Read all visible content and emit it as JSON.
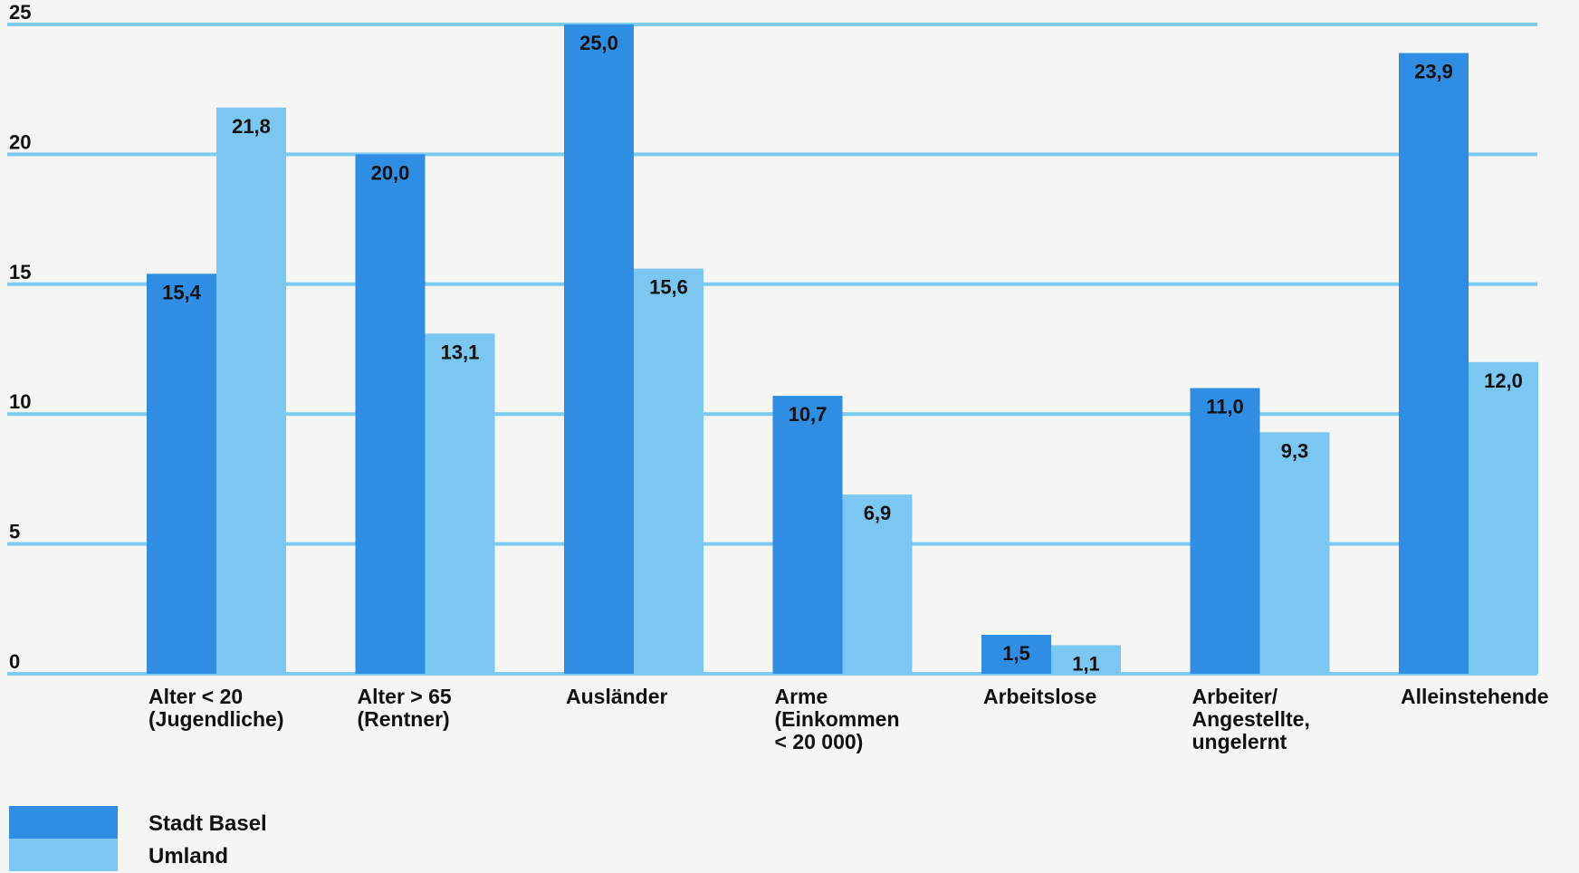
{
  "chart_data": {
    "type": "bar",
    "categories": [
      [
        "Alter < 20",
        "(Jugendliche)"
      ],
      [
        "Alter > 65",
        "(Rentner)"
      ],
      [
        "Ausländer"
      ],
      [
        "Arme",
        "(Einkommen",
        "< 20 000)"
      ],
      [
        "Arbeitslose"
      ],
      [
        "Arbeiter/",
        "Angestellte,",
        "ungelernt"
      ],
      [
        "Alleinstehende"
      ]
    ],
    "series": [
      {
        "name": "Stadt Basel",
        "color": "#2f8ee3",
        "values": [
          15.4,
          20.0,
          25.0,
          10.7,
          1.5,
          11.0,
          23.9
        ],
        "labels": [
          "15,4",
          "20,0",
          "25,0",
          "10,7",
          "1,5",
          "11,0",
          "23,9"
        ]
      },
      {
        "name": "Umland",
        "color": "#7cc6f2",
        "values": [
          21.8,
          13.1,
          15.6,
          6.9,
          1.1,
          9.3,
          12.0
        ],
        "labels": [
          "21,8",
          "13,1",
          "15,6",
          "6,9",
          "1,1",
          "9,3",
          "12,0"
        ]
      }
    ],
    "ylim": [
      0,
      25
    ],
    "yticks": [
      0,
      5,
      10,
      15,
      20,
      25
    ],
    "grid": true,
    "gridline_color": "#7ccbf0",
    "legend_position": "bottom-left",
    "title": "",
    "xlabel": "",
    "ylabel": ""
  }
}
